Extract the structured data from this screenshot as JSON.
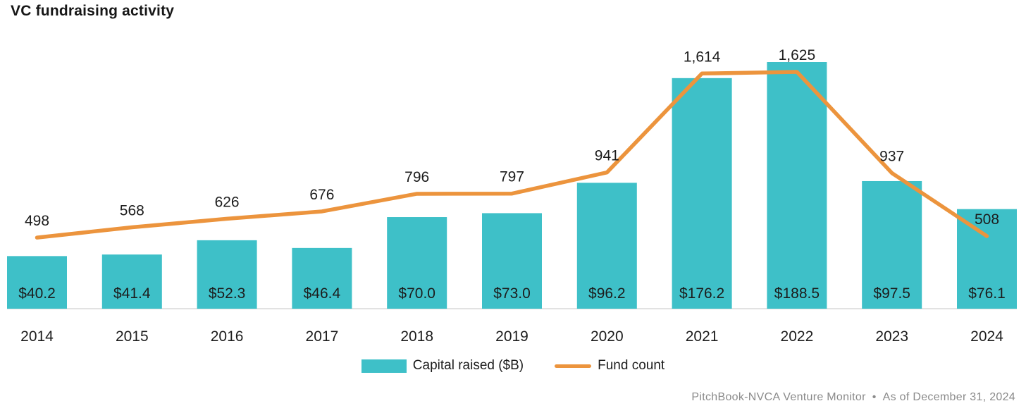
{
  "title": "VC fundraising activity",
  "colors": {
    "bar": "#3EC0C8",
    "line": "#EC943D",
    "text": "#1c1c1c",
    "baseline": "#d8d8d8",
    "footer_text": "#8a8a8a"
  },
  "legend": {
    "position": "bottom-center",
    "items": [
      {
        "marker": "square",
        "label": "Capital raised ($B)",
        "color": "#3EC0C8"
      },
      {
        "marker": "line",
        "label": "Fund count",
        "color": "#EC943D"
      }
    ]
  },
  "footer": {
    "source": "PitchBook-NVCA Venture Monitor",
    "separator": "•",
    "as_of": "As of December 31, 2024"
  },
  "chart_data": {
    "type": "bar+line",
    "title": "VC fundraising activity",
    "xlabel": "",
    "ylabel": "",
    "grid": false,
    "categories": [
      "2014",
      "2015",
      "2016",
      "2017",
      "2018",
      "2019",
      "2020",
      "2021",
      "2022",
      "2023",
      "2024"
    ],
    "series": [
      {
        "name": "Capital raised ($B)",
        "type": "bar",
        "values": [
          40.2,
          41.4,
          52.3,
          46.4,
          70.0,
          73.0,
          96.2,
          176.2,
          188.5,
          97.5,
          76.1
        ],
        "labels": [
          "$40.2",
          "$41.4",
          "$52.3",
          "$46.4",
          "$70.0",
          "$73.0",
          "$96.2",
          "$176.2",
          "$188.5",
          "$97.5",
          "$76.1"
        ],
        "axis_range": [
          0,
          190
        ],
        "label_position": "inside-bottom"
      },
      {
        "name": "Fund count",
        "type": "line",
        "values": [
          498,
          568,
          626,
          676,
          796,
          797,
          941,
          1614,
          1625,
          937,
          508
        ],
        "labels": [
          "498",
          "568",
          "626",
          "676",
          "796",
          "797",
          "941",
          "1,614",
          "1,625",
          "937",
          "508"
        ],
        "axis_range": [
          0,
          1700
        ],
        "label_position": "above-point"
      }
    ]
  }
}
